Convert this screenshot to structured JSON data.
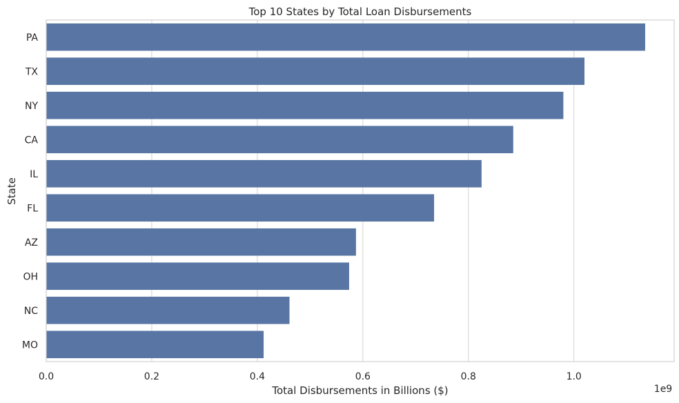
{
  "chart_data": {
    "type": "bar",
    "orientation": "horizontal",
    "title": "Top 10 States by Total Loan Disbursements",
    "xlabel": "Total Disbursements in Billions ($)",
    "ylabel": "State",
    "x_offset_label": "1e9",
    "categories": [
      "PA",
      "TX",
      "NY",
      "CA",
      "IL",
      "FL",
      "AZ",
      "OH",
      "NC",
      "MO"
    ],
    "values": [
      1.135,
      1.02,
      0.98,
      0.885,
      0.825,
      0.735,
      0.587,
      0.574,
      0.461,
      0.412
    ],
    "xlim": [
      0,
      1.19
    ],
    "xticks": [
      0.0,
      0.2,
      0.4,
      0.6,
      0.8,
      1.0
    ],
    "xtick_labels": [
      "0.0",
      "0.2",
      "0.4",
      "0.6",
      "0.8",
      "1.0"
    ],
    "grid": true,
    "bar_color": "#5875a4",
    "grid_color": "#d9d9d9",
    "spine_color": "#d0d0d0"
  }
}
